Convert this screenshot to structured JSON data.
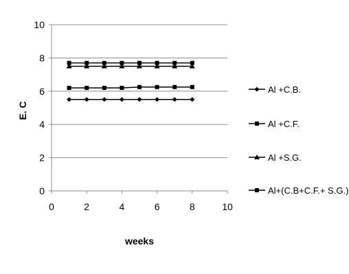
{
  "chart_data": {
    "type": "line",
    "xlabel": "weeks",
    "ylabel": "E. C",
    "xlim": [
      0,
      10
    ],
    "ylim": [
      0,
      10
    ],
    "xticks": [
      "0",
      "2",
      "4",
      "6",
      "8",
      "10"
    ],
    "yticks": [
      "0",
      "2",
      "4",
      "6",
      "8",
      "10"
    ],
    "grid": "horizontal",
    "legend_position": "right",
    "x": [
      1,
      2,
      3,
      4,
      5,
      6,
      7,
      8
    ],
    "series": [
      {
        "name": "Al +C.B.",
        "marker": "diamond",
        "values": [
          5.5,
          5.5,
          5.5,
          5.5,
          5.5,
          5.5,
          5.5,
          5.5
        ]
      },
      {
        "name": "Al +C.F.",
        "marker": "square",
        "values": [
          6.2,
          6.2,
          6.2,
          6.2,
          6.25,
          6.25,
          6.25,
          6.25
        ]
      },
      {
        "name": "Al +S.G.",
        "marker": "triangle",
        "values": [
          7.5,
          7.5,
          7.5,
          7.5,
          7.5,
          7.5,
          7.5,
          7.5
        ]
      },
      {
        "name": "Al+(C.B+C.F.+ S.G.)",
        "marker": "square",
        "values": [
          7.7,
          7.7,
          7.7,
          7.7,
          7.7,
          7.7,
          7.7,
          7.7
        ]
      }
    ],
    "colors": {
      "line": "#000000",
      "grid": "#8c8c8c",
      "axis": "#8c8c8c"
    }
  }
}
